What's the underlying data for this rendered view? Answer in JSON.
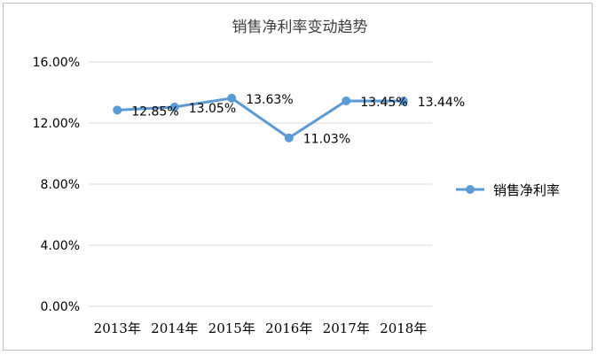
{
  "chart_data": {
    "type": "line",
    "title": "销售净利率变动趋势",
    "categories": [
      "2013年",
      "2014年",
      "2015年",
      "2016年",
      "2017年",
      "2018年"
    ],
    "series": [
      {
        "name": "销售净利率",
        "values": [
          12.85,
          13.05,
          13.63,
          11.03,
          13.45,
          13.44
        ],
        "labels": [
          "12.85%",
          "13.05%",
          "13.63%",
          "11.03%",
          "13.45%",
          "13.44%"
        ]
      }
    ],
    "ylim": [
      0,
      16
    ],
    "yticks": [
      "0.00%",
      "4.00%",
      "8.00%",
      "12.00%",
      "16.00%"
    ],
    "ytick_values": [
      0,
      4,
      8,
      12,
      16
    ],
    "grid": true,
    "legend_position": "right",
    "colors": {
      "line": "#5b9bd5",
      "grid": "#d9d9d9",
      "text": "#000000",
      "title": "#404040"
    }
  }
}
